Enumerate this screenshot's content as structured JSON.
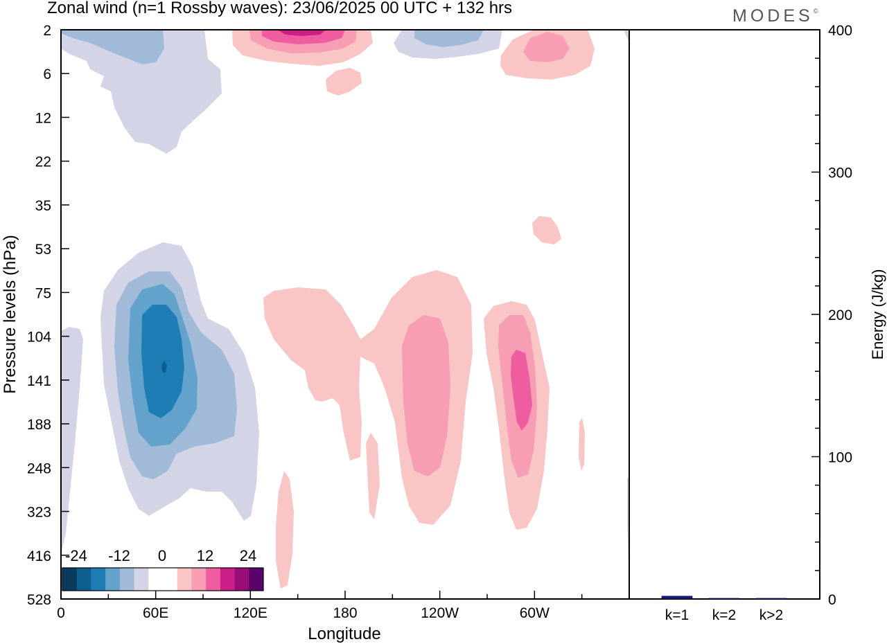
{
  "title": "Zonal wind (n=1 Rossby waves):  23/06/2025  00 UTC  + 132 hrs",
  "brand": "MODES",
  "brand_mark": "©",
  "chart_data": [
    {
      "type": "heatmap",
      "variable": "Zonal wind",
      "xlabel": "Longitude",
      "ylabel": "Pressure levels (hPa)",
      "x_ticks": [
        "0",
        "60E",
        "120E",
        "180",
        "120W",
        "60W"
      ],
      "y_ticks": [
        "2",
        "6",
        "12",
        "22",
        "35",
        "53",
        "75",
        "104",
        "141",
        "188",
        "248",
        "323",
        "416",
        "528"
      ],
      "colorbar": {
        "labels": [
          "-24",
          "-12",
          "0",
          "12",
          "24"
        ],
        "colors": [
          "#0b3a5c",
          "#0d5f90",
          "#1f7db6",
          "#62a2cb",
          "#a0bad8",
          "#d3d4e6",
          "#ffffff",
          "#ffffff",
          "#f9c6c5",
          "#f79db4",
          "#ef5da0",
          "#cb1f86",
          "#9a0d77",
          "#5a036a"
        ]
      },
      "features": [
        {
          "sign": "negative",
          "center_lon": 65,
          "center_level": 141,
          "peak": -18
        },
        {
          "sign": "negative",
          "center_lon": 40,
          "center_level": 2,
          "peak": -8
        },
        {
          "sign": "negative",
          "center_lon": 230,
          "center_level": 2,
          "peak": -6
        },
        {
          "sign": "positive",
          "center_lon": 145,
          "center_level": 2,
          "peak": 14
        },
        {
          "sign": "positive",
          "center_lon": 295,
          "center_level": 3,
          "peak": 6
        },
        {
          "sign": "positive",
          "center_lon": 240,
          "center_level": 170,
          "peak": 8
        },
        {
          "sign": "positive",
          "center_lon": 302,
          "center_level": 150,
          "peak": 12
        },
        {
          "sign": "positive",
          "center_lon": 150,
          "center_level": 141,
          "peak": 3
        },
        {
          "sign": "positive",
          "center_lon": 140,
          "center_level": 430,
          "peak": 3
        }
      ]
    },
    {
      "type": "bar",
      "ylabel": "Energy (J/kg)",
      "categories": [
        "k=1",
        "k=2",
        "k>2"
      ],
      "values": [
        2,
        0.5,
        0.5
      ],
      "ylim": [
        0,
        400
      ],
      "y_ticks": [
        "0",
        "100",
        "200",
        "300",
        "400"
      ],
      "bar_color": "#1a1a8c"
    }
  ]
}
